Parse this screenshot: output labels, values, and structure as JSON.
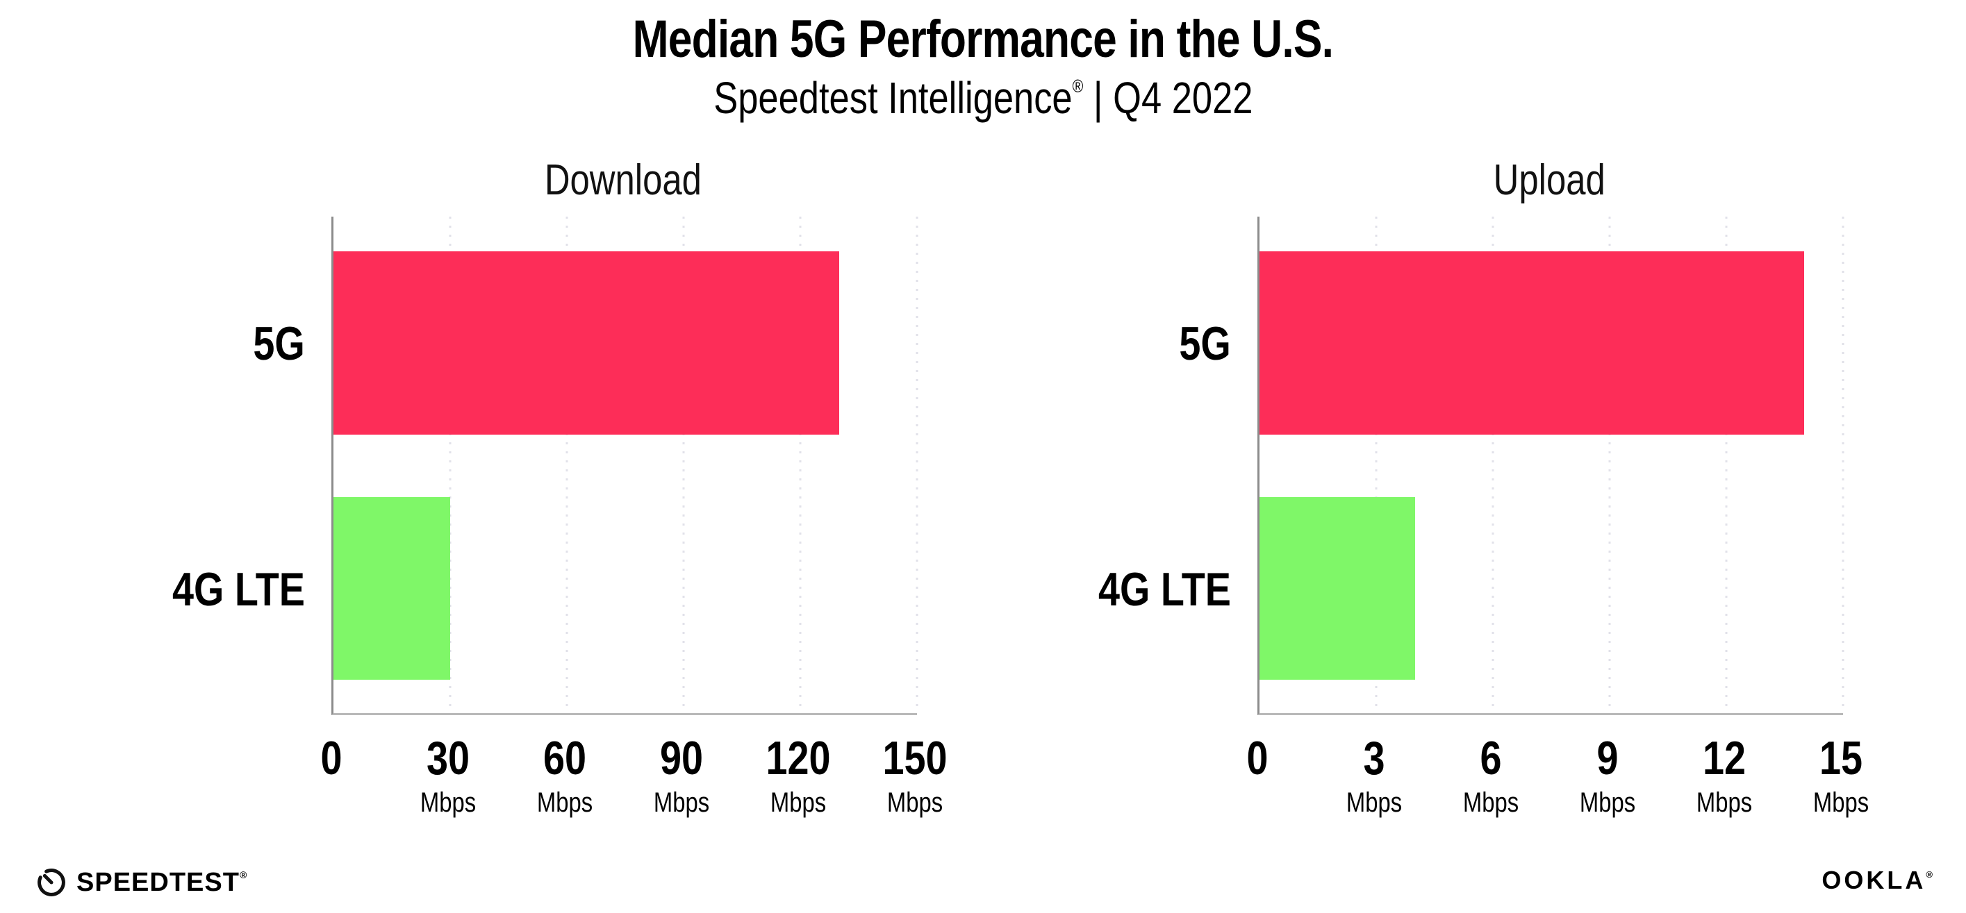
{
  "header": {
    "title": "Median 5G Performance in the U.S.",
    "subtitle_brand": "Speedtest Intelligence",
    "subtitle_reg": "®",
    "subtitle_separator": " | ",
    "subtitle_period": "Q4 2022"
  },
  "chart_data": [
    {
      "type": "bar",
      "orientation": "horizontal",
      "title": "Download",
      "categories": [
        "5G",
        "4G LTE"
      ],
      "values": [
        130,
        30
      ],
      "unit": "Mbps",
      "xlim": [
        0,
        150
      ],
      "xticks": [
        0,
        30,
        60,
        90,
        120,
        150
      ],
      "bar_colors": [
        "#FD2D58",
        "#7FF768"
      ],
      "grid": "dotted-vertical-at-ticks",
      "legend": "none"
    },
    {
      "type": "bar",
      "orientation": "horizontal",
      "title": "Upload",
      "categories": [
        "5G",
        "4G LTE"
      ],
      "values": [
        14,
        4
      ],
      "unit": "Mbps",
      "xlim": [
        0,
        15
      ],
      "xticks": [
        0,
        3,
        6,
        9,
        12,
        15
      ],
      "bar_colors": [
        "#FD2D58",
        "#7FF768"
      ],
      "grid": "dotted-vertical-at-ticks",
      "legend": "none"
    }
  ],
  "footer": {
    "speedtest_label": "SPEEDTEST",
    "speedtest_reg": "®",
    "ookla_label": "OOKLA",
    "ookla_reg": "®"
  },
  "colors": {
    "bar_5g": "#FD2D58",
    "bar_4g_lte": "#7FF768",
    "axis_y": "#8c8c8c",
    "axis_x": "#b9b9b9",
    "gridline": "#e1e1e9",
    "text": "#000000",
    "background": "#ffffff"
  }
}
